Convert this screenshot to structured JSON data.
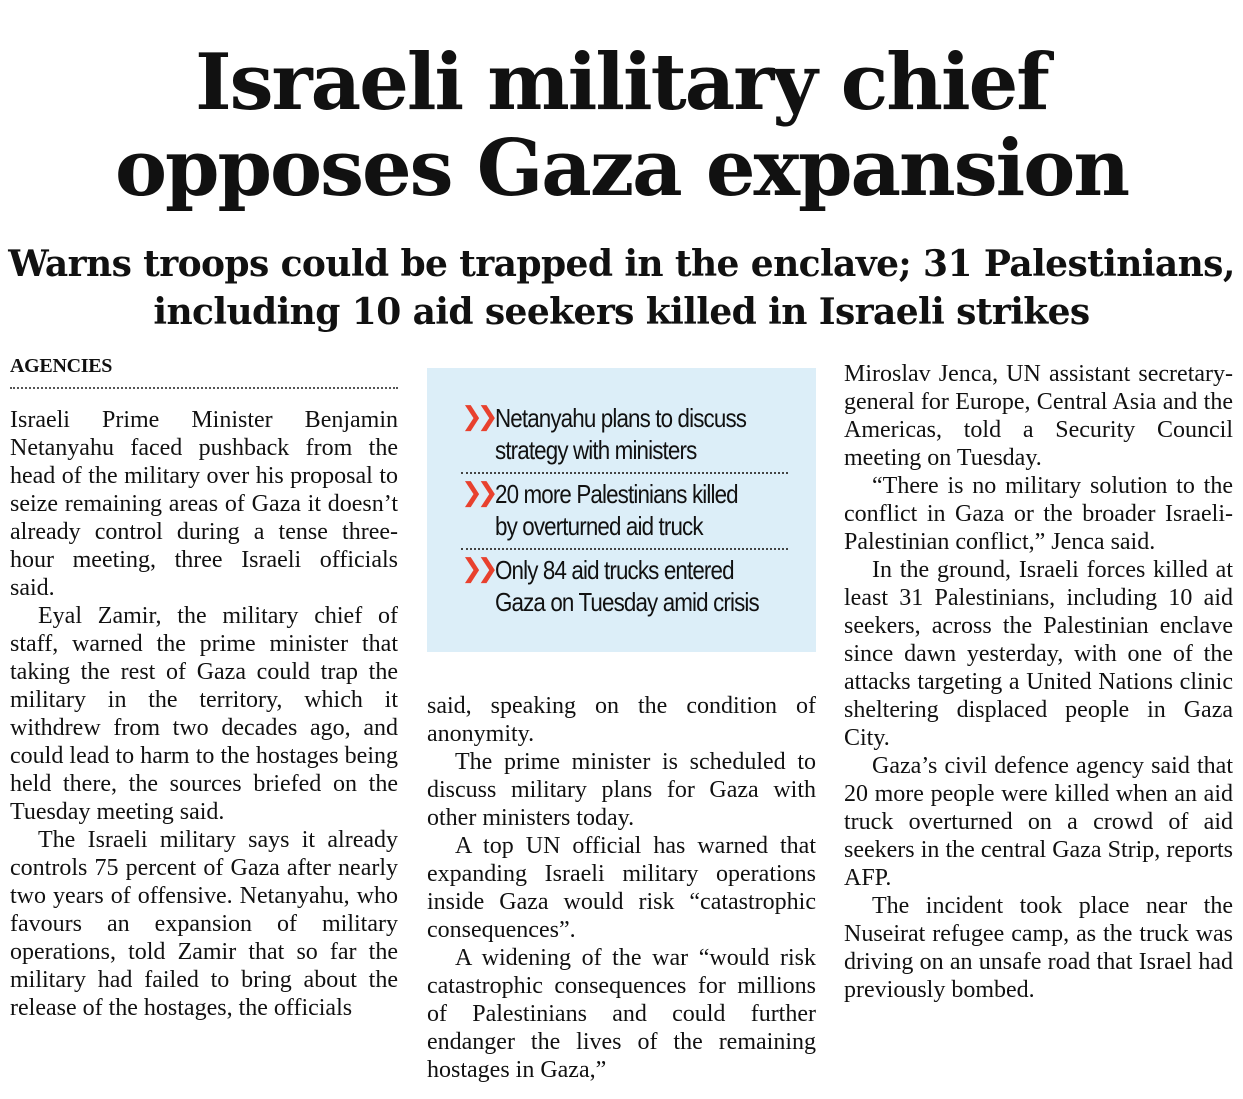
{
  "headline": {
    "line1": "Israeli military chief",
    "line2": "opposes Gaza expansion"
  },
  "subhead": {
    "line1": "Warns troops could be trapped in the enclave; 31 Palestinians,",
    "line2": "including 10 aid seekers killed in Israeli strikes"
  },
  "byline": "AGENCIES",
  "highlights": {
    "icon": "double-chevron-right-icon",
    "accent_color": "#e8412e",
    "background_color": "#dceef8",
    "items": [
      {
        "line1": "Netanyahu plans to discuss",
        "line2": "strategy with ministers"
      },
      {
        "line1": "20 more Palestinians killed",
        "line2": "by overturned aid truck"
      },
      {
        "line1": "Only 84 aid trucks entered",
        "line2": "Gaza on Tuesday amid crisis"
      }
    ]
  },
  "article": {
    "col1": [
      "Israeli Prime Minister Benjamin Netanyahu faced pushback from the head of the military over his proposal to seize remaining areas of Gaza it doesn’t already control during a tense three-hour meeting, three Israeli officials said.",
      "Eyal Zamir, the military chief of staff, warned the prime minister that taking the rest of Gaza could trap the military in the territory, which it withdrew from two decades ago, and could lead to harm to the hostages being held there, the sources briefed on the Tuesday meeting said.",
      "The Israeli military says it already controls 75 percent of Gaza after nearly two years of offensive. Netanyahu, who favours an expansion of military operations, told Zamir that so far the military had failed to bring about the release of the hostages, the officials"
    ],
    "col2": [
      "said, speaking on the condition of anonymity.",
      "The prime minister is scheduled to discuss military plans for Gaza with other ministers today.",
      "A top UN official has warned that expanding Israeli military operations inside Gaza would risk “catastrophic consequences”.",
      "A widening of the war “would risk catastrophic consequences for millions of Palestinians and could further endanger the lives of the remaining hostages in Gaza,”"
    ],
    "col3": [
      "Miroslav Jenca, UN assistant secretary-general for Europe, Central Asia and the Americas, told a Security Council meeting on Tuesday.",
      "“There is no military solution to the conflict in Gaza or the broader Israeli-Palestinian conflict,” Jenca said.",
      "In the ground, Israeli forces killed at least 31 Palestinians, including 10 aid seekers, across the Palestinian enclave since dawn yesterday, with one of the attacks targeting a United Nations clinic sheltering displaced people in Gaza City.",
      "Gaza’s civil defence agency said that 20 more people were killed when an aid truck overturned on a crowd of aid seekers in the central Gaza Strip, reports AFP.",
      "The incident took place near the Nuseirat refugee camp, as the truck was driving on an unsafe road that Israel had previously bombed."
    ]
  }
}
